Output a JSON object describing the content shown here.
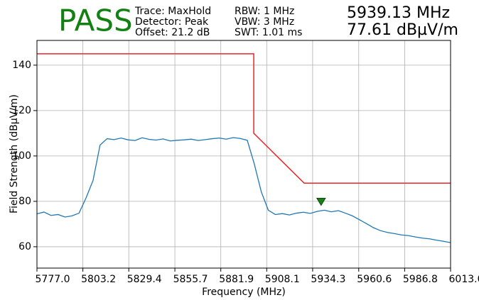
{
  "chart_data": {
    "type": "line",
    "status": "PASS",
    "settings": [
      "Trace: MaxHold",
      "Detector: Peak",
      "Offset: 21.2 dB",
      "RBW: 1 MHz",
      "VBW: 3 MHz",
      "SWT: 1.01 ms"
    ],
    "readout": [
      "5939.13 MHz",
      "77.61 dBµV/m"
    ],
    "xlabel": "Frequency (MHz)",
    "ylabel": "Field Strength (dBµV/m)",
    "x": [
      5777,
      5781,
      5785,
      5789,
      5793,
      5797,
      5801,
      5805,
      5809,
      5813,
      5817,
      5821,
      5825,
      5829,
      5833,
      5837,
      5841,
      5845,
      5849,
      5853,
      5857,
      5861,
      5865,
      5869,
      5873,
      5877,
      5881,
      5885,
      5889,
      5893,
      5897,
      5901,
      5905,
      5909,
      5913,
      5917,
      5921,
      5925,
      5929,
      5933,
      5937,
      5941,
      5945,
      5949,
      5953,
      5957,
      5961,
      5965,
      5969,
      5973,
      5977,
      5981,
      5985,
      5989,
      5993,
      5997,
      6001,
      6005,
      6009,
      6013
    ],
    "values": [
      74.5,
      75.3,
      73.8,
      74.2,
      73.1,
      73.6,
      74.8,
      81.5,
      89.2,
      104.8,
      107.6,
      107.2,
      107.9,
      107.1,
      106.8,
      108.0,
      107.3,
      107.0,
      107.5,
      106.6,
      106.9,
      107.1,
      107.4,
      106.8,
      107.2,
      107.6,
      107.9,
      107.4,
      108.1,
      107.7,
      106.9,
      96.5,
      84.2,
      76.1,
      74.2,
      74.6,
      74.0,
      74.8,
      75.2,
      74.7,
      75.6,
      76.1,
      75.4,
      75.9,
      74.8,
      73.6,
      71.9,
      70.2,
      68.4,
      67.1,
      66.3,
      65.8,
      65.2,
      64.9,
      64.3,
      63.8,
      63.5,
      62.9,
      62.4,
      61.8
    ],
    "color": "#1f77b4",
    "limit_line": {
      "x": [
        5777,
        5900.7,
        5900.7,
        5929.5,
        6013
      ],
      "y": [
        145,
        145,
        110,
        88,
        88
      ],
      "color": "#e8262a"
    },
    "marker": {
      "x": 5939.13,
      "y": 77.61,
      "color": "#1a7f1a"
    },
    "status_color": "#138013",
    "xlim": [
      5777,
      6013
    ],
    "ylim": [
      50.6,
      150.9
    ],
    "xticks": [
      {
        "value": 5777,
        "label": "5777.0"
      },
      5803.2,
      5829.4,
      5855.7,
      5881.9,
      5908.1,
      5934.3,
      5960.6,
      5986.8,
      {
        "value": 6013,
        "label": "6013.0"
      }
    ],
    "yticks": [
      60,
      80,
      100,
      120,
      140
    ],
    "grid": true
  }
}
